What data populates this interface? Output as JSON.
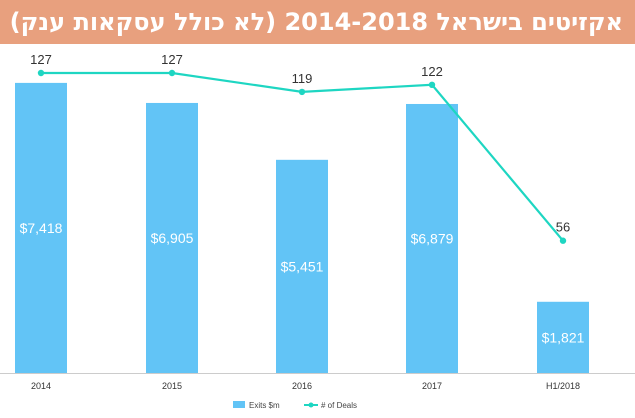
{
  "title": "אקזיטים בישראל 2014-2018 (לא כולל עסקאות ענק)",
  "colors": {
    "title_bg": "#e8a07e",
    "bars": "#62c4f6",
    "line": "#1ed6c2",
    "axis": "#cccccc"
  },
  "chart_data": {
    "type": "bar",
    "title": "אקזיטים בישראל 2014-2018 (לא כולל עסקאות ענק)",
    "categories": [
      "2014",
      "2015",
      "2016",
      "2017",
      "H1/2018"
    ],
    "series": [
      {
        "name": "Exits $m",
        "type": "bar",
        "values": [
          7418,
          6905,
          5451,
          6879,
          1821
        ],
        "labels": [
          "$7,418",
          "$6,905",
          "$5,451",
          "$6,879",
          "$1,821"
        ]
      },
      {
        "name": "# of Deals",
        "type": "line",
        "values": [
          127,
          127,
          119,
          122,
          56
        ],
        "labels": [
          "127",
          "127",
          "119",
          "122",
          "56"
        ]
      }
    ],
    "ylim_bars": [
      0,
      7850
    ],
    "ylim_deals": [
      0,
      135
    ],
    "grid": false,
    "legend": "bottom-center",
    "legend_entries": [
      "Exits $m",
      "# of Deals"
    ]
  }
}
